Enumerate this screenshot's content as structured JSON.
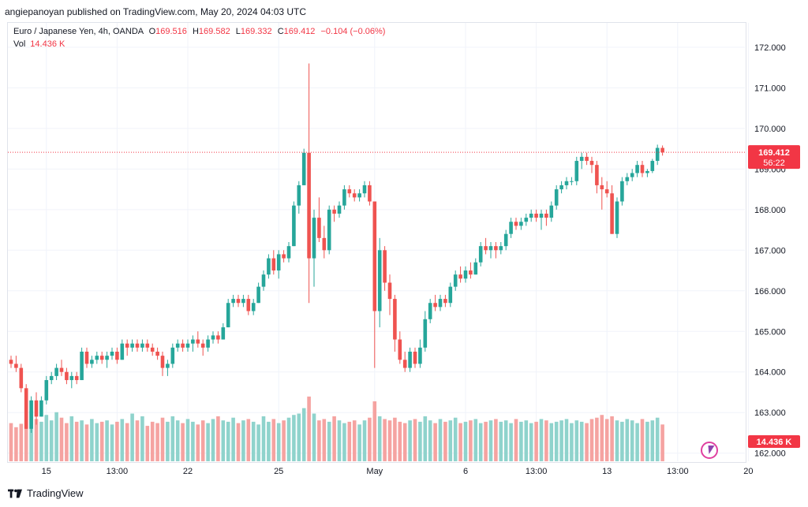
{
  "header": {
    "published": "angiepanoyan published on TradingView.com, May 20, 2024 04:03 UTC"
  },
  "legend": {
    "symbol": "Euro / Japanese Yen, 4h, OANDA",
    "o_label": "O",
    "o": "169.516",
    "h_label": "H",
    "h": "169.582",
    "l_label": "L",
    "l": "169.332",
    "c_label": "C",
    "c": "169.412",
    "change": "−0.104 (−0.06%)",
    "vol_label": "Vol",
    "vol": "14.436 K"
  },
  "price_badge": {
    "price": "169.412",
    "timer": "56:22",
    "color": "#f23645"
  },
  "volume_badge": "14.436 K",
  "footer": {
    "brand": "TradingView"
  },
  "colors": {
    "up": "#26a69a",
    "down": "#ef5350",
    "vol_up": "#8fd3cc",
    "vol_down": "#f5a3a1",
    "grid": "#f0f3fa"
  },
  "chart_data": {
    "type": "candlestick",
    "interval": "4h",
    "ylim": [
      161.8,
      172.6
    ],
    "yticks": [
      "172.000",
      "171.000",
      "170.000",
      "169.000",
      "168.000",
      "167.000",
      "166.000",
      "165.000",
      "164.000",
      "163.000",
      "162.000"
    ],
    "xticks": [
      {
        "label": "15",
        "index": 7
      },
      {
        "label": "13:00",
        "index": 21
      },
      {
        "label": "22",
        "index": 35
      },
      {
        "label": "25",
        "index": 53
      },
      {
        "label": "May",
        "index": 72
      },
      {
        "label": "6",
        "index": 90
      },
      {
        "label": "13:00",
        "index": 104
      },
      {
        "label": "13",
        "index": 118
      },
      {
        "label": "13:00",
        "index": 132
      },
      {
        "label": "20",
        "index": 146
      }
    ],
    "last_price": 169.412,
    "candles": [
      [
        164.3,
        164.4,
        164.1,
        164.2
      ],
      [
        164.2,
        164.4,
        164.0,
        164.1
      ],
      [
        164.1,
        164.2,
        163.5,
        163.6
      ],
      [
        163.6,
        163.7,
        162.6,
        162.6
      ],
      [
        162.6,
        163.4,
        162.5,
        163.3
      ],
      [
        163.3,
        163.5,
        162.7,
        162.9
      ],
      [
        162.9,
        163.4,
        162.9,
        163.3
      ],
      [
        163.3,
        163.9,
        163.2,
        163.8
      ],
      [
        163.8,
        164.0,
        163.7,
        163.9
      ],
      [
        163.9,
        164.2,
        163.8,
        164.1
      ],
      [
        164.1,
        164.3,
        163.9,
        164.0
      ],
      [
        164.0,
        164.1,
        163.7,
        163.8
      ],
      [
        163.8,
        164.0,
        163.6,
        163.9
      ],
      [
        163.9,
        164.0,
        163.7,
        163.8
      ],
      [
        163.8,
        164.6,
        163.8,
        164.5
      ],
      [
        164.5,
        164.6,
        164.1,
        164.2
      ],
      [
        164.2,
        164.4,
        164.1,
        164.3
      ],
      [
        164.3,
        164.5,
        164.2,
        164.4
      ],
      [
        164.4,
        164.5,
        164.2,
        164.3
      ],
      [
        164.3,
        164.5,
        164.1,
        164.4
      ],
      [
        164.4,
        164.6,
        164.3,
        164.5
      ],
      [
        164.5,
        164.6,
        164.2,
        164.3
      ],
      [
        164.3,
        164.8,
        164.3,
        164.7
      ],
      [
        164.7,
        164.8,
        164.4,
        164.6
      ],
      [
        164.6,
        164.8,
        164.5,
        164.7
      ],
      [
        164.7,
        164.8,
        164.5,
        164.6
      ],
      [
        164.6,
        164.8,
        164.5,
        164.7
      ],
      [
        164.7,
        164.8,
        164.5,
        164.6
      ],
      [
        164.6,
        164.7,
        164.4,
        164.5
      ],
      [
        164.5,
        164.6,
        164.3,
        164.4
      ],
      [
        164.4,
        164.5,
        163.9,
        164.1
      ],
      [
        164.1,
        164.3,
        163.9,
        164.2
      ],
      [
        164.2,
        164.7,
        164.1,
        164.6
      ],
      [
        164.6,
        164.8,
        164.5,
        164.7
      ],
      [
        164.7,
        164.8,
        164.5,
        164.6
      ],
      [
        164.6,
        164.8,
        164.5,
        164.7
      ],
      [
        164.7,
        164.9,
        164.5,
        164.8
      ],
      [
        164.8,
        165.0,
        164.6,
        164.7
      ],
      [
        164.7,
        164.8,
        164.4,
        164.6
      ],
      [
        164.6,
        164.9,
        164.5,
        164.8
      ],
      [
        164.8,
        165.0,
        164.7,
        164.9
      ],
      [
        164.9,
        165.0,
        164.7,
        164.8
      ],
      [
        164.8,
        165.2,
        164.8,
        165.1
      ],
      [
        165.1,
        165.8,
        165.1,
        165.7
      ],
      [
        165.7,
        165.9,
        165.6,
        165.8
      ],
      [
        165.8,
        165.9,
        165.6,
        165.7
      ],
      [
        165.7,
        165.9,
        165.6,
        165.8
      ],
      [
        165.8,
        165.9,
        165.4,
        165.5
      ],
      [
        165.5,
        165.8,
        165.4,
        165.7
      ],
      [
        165.7,
        166.2,
        165.7,
        166.1
      ],
      [
        166.1,
        166.5,
        166.0,
        166.4
      ],
      [
        166.4,
        166.9,
        166.3,
        166.8
      ],
      [
        166.8,
        167.0,
        166.4,
        166.5
      ],
      [
        166.5,
        167.0,
        166.3,
        166.9
      ],
      [
        166.9,
        167.0,
        166.7,
        166.8
      ],
      [
        166.8,
        167.2,
        166.7,
        167.1
      ],
      [
        167.1,
        168.2,
        167.1,
        168.1
      ],
      [
        168.1,
        168.7,
        167.9,
        168.6
      ],
      [
        168.6,
        169.5,
        168.6,
        169.4
      ],
      [
        169.4,
        171.6,
        165.7,
        166.8
      ],
      [
        166.8,
        168.0,
        166.1,
        167.8
      ],
      [
        167.8,
        168.3,
        167.2,
        167.3
      ],
      [
        167.3,
        167.6,
        166.8,
        167.0
      ],
      [
        167.0,
        168.1,
        166.9,
        168.0
      ],
      [
        168.0,
        168.1,
        167.7,
        167.9
      ],
      [
        167.9,
        168.2,
        167.8,
        168.1
      ],
      [
        168.1,
        168.6,
        168.0,
        168.5
      ],
      [
        168.5,
        168.6,
        168.3,
        168.4
      ],
      [
        168.4,
        168.5,
        168.2,
        168.3
      ],
      [
        168.3,
        168.5,
        168.2,
        168.4
      ],
      [
        168.4,
        168.7,
        168.3,
        168.6
      ],
      [
        168.6,
        168.7,
        168.1,
        168.2
      ],
      [
        168.2,
        168.2,
        164.1,
        165.5
      ],
      [
        165.5,
        167.3,
        165.1,
        167.0
      ],
      [
        167.0,
        167.1,
        166.0,
        166.2
      ],
      [
        166.2,
        166.4,
        165.4,
        165.8
      ],
      [
        165.8,
        165.9,
        164.5,
        164.8
      ],
      [
        164.8,
        165.0,
        164.2,
        164.3
      ],
      [
        164.3,
        164.5,
        164.0,
        164.1
      ],
      [
        164.1,
        164.6,
        164.0,
        164.5
      ],
      [
        164.5,
        164.6,
        164.1,
        164.2
      ],
      [
        164.2,
        164.8,
        164.1,
        164.6
      ],
      [
        164.6,
        165.5,
        164.5,
        165.3
      ],
      [
        165.3,
        165.8,
        165.2,
        165.7
      ],
      [
        165.7,
        165.9,
        165.5,
        165.6
      ],
      [
        165.6,
        165.9,
        165.5,
        165.8
      ],
      [
        165.8,
        165.9,
        165.6,
        165.7
      ],
      [
        165.7,
        166.2,
        165.6,
        166.1
      ],
      [
        166.1,
        166.5,
        166.0,
        166.4
      ],
      [
        166.4,
        166.6,
        166.2,
        166.3
      ],
      [
        166.3,
        166.6,
        166.2,
        166.5
      ],
      [
        166.5,
        166.7,
        166.3,
        166.4
      ],
      [
        166.4,
        166.8,
        166.4,
        166.7
      ],
      [
        166.7,
        167.2,
        166.6,
        167.1
      ],
      [
        167.1,
        167.3,
        166.9,
        167.0
      ],
      [
        167.0,
        167.2,
        166.8,
        167.1
      ],
      [
        167.1,
        167.2,
        166.8,
        167.0
      ],
      [
        167.0,
        167.2,
        166.9,
        167.1
      ],
      [
        167.1,
        167.5,
        167.0,
        167.4
      ],
      [
        167.4,
        167.8,
        167.3,
        167.7
      ],
      [
        167.7,
        167.8,
        167.5,
        167.6
      ],
      [
        167.6,
        167.8,
        167.5,
        167.7
      ],
      [
        167.7,
        167.9,
        167.6,
        167.8
      ],
      [
        167.8,
        168.0,
        167.7,
        167.9
      ],
      [
        167.9,
        168.0,
        167.7,
        167.8
      ],
      [
        167.8,
        168.0,
        167.5,
        167.9
      ],
      [
        167.9,
        168.0,
        167.6,
        167.8
      ],
      [
        167.8,
        168.2,
        167.7,
        168.1
      ],
      [
        168.1,
        168.6,
        168.0,
        168.5
      ],
      [
        168.5,
        168.7,
        168.4,
        168.6
      ],
      [
        168.6,
        168.8,
        168.5,
        168.7
      ],
      [
        168.7,
        168.8,
        168.6,
        168.7
      ],
      [
        168.7,
        169.3,
        168.6,
        169.2
      ],
      [
        169.2,
        169.4,
        169.0,
        169.3
      ],
      [
        169.3,
        169.4,
        169.1,
        169.2
      ],
      [
        169.2,
        169.3,
        168.9,
        169.1
      ],
      [
        169.1,
        169.2,
        168.4,
        168.6
      ],
      [
        168.6,
        168.8,
        168.0,
        168.5
      ],
      [
        168.5,
        168.7,
        168.3,
        168.4
      ],
      [
        168.4,
        168.6,
        167.4,
        167.4
      ],
      [
        167.4,
        168.3,
        167.3,
        168.2
      ],
      [
        168.2,
        168.8,
        168.1,
        168.7
      ],
      [
        168.7,
        168.9,
        168.6,
        168.8
      ],
      [
        168.8,
        169.0,
        168.7,
        168.9
      ],
      [
        168.9,
        169.2,
        168.8,
        169.1
      ],
      [
        169.1,
        169.2,
        168.8,
        168.9
      ],
      [
        168.9,
        169.0,
        168.8,
        168.95
      ],
      [
        168.95,
        169.25,
        168.9,
        169.2
      ],
      [
        169.2,
        169.6,
        169.1,
        169.52
      ],
      [
        169.52,
        169.58,
        169.33,
        169.41
      ]
    ],
    "volumes": [
      0.56,
      0.5,
      0.55,
      0.6,
      0.74,
      0.62,
      0.58,
      0.68,
      0.6,
      0.72,
      0.64,
      0.56,
      0.66,
      0.58,
      0.6,
      0.54,
      0.62,
      0.56,
      0.58,
      0.6,
      0.54,
      0.58,
      0.62,
      0.56,
      0.7,
      0.6,
      0.66,
      0.52,
      0.58,
      0.56,
      0.64,
      0.58,
      0.66,
      0.6,
      0.56,
      0.62,
      0.58,
      0.54,
      0.6,
      0.56,
      0.62,
      0.66,
      0.6,
      0.58,
      0.64,
      0.56,
      0.6,
      0.62,
      0.58,
      0.54,
      0.66,
      0.58,
      0.62,
      0.56,
      0.6,
      0.64,
      0.68,
      0.7,
      0.78,
      0.95,
      0.7,
      0.6,
      0.62,
      0.58,
      0.66,
      0.6,
      0.56,
      0.58,
      0.6,
      0.54,
      0.6,
      0.64,
      0.88,
      0.66,
      0.62,
      0.6,
      0.64,
      0.58,
      0.56,
      0.6,
      0.62,
      0.58,
      0.66,
      0.6,
      0.56,
      0.62,
      0.58,
      0.6,
      0.64,
      0.56,
      0.58,
      0.6,
      0.62,
      0.56,
      0.58,
      0.6,
      0.62,
      0.58,
      0.6,
      0.56,
      0.62,
      0.58,
      0.6,
      0.56,
      0.58,
      0.62,
      0.6,
      0.56,
      0.58,
      0.6,
      0.62,
      0.56,
      0.6,
      0.58,
      0.56,
      0.62,
      0.64,
      0.68,
      0.62,
      0.66,
      0.6,
      0.58,
      0.62,
      0.6,
      0.56,
      0.62,
      0.58,
      0.6,
      0.64,
      0.54
    ]
  }
}
